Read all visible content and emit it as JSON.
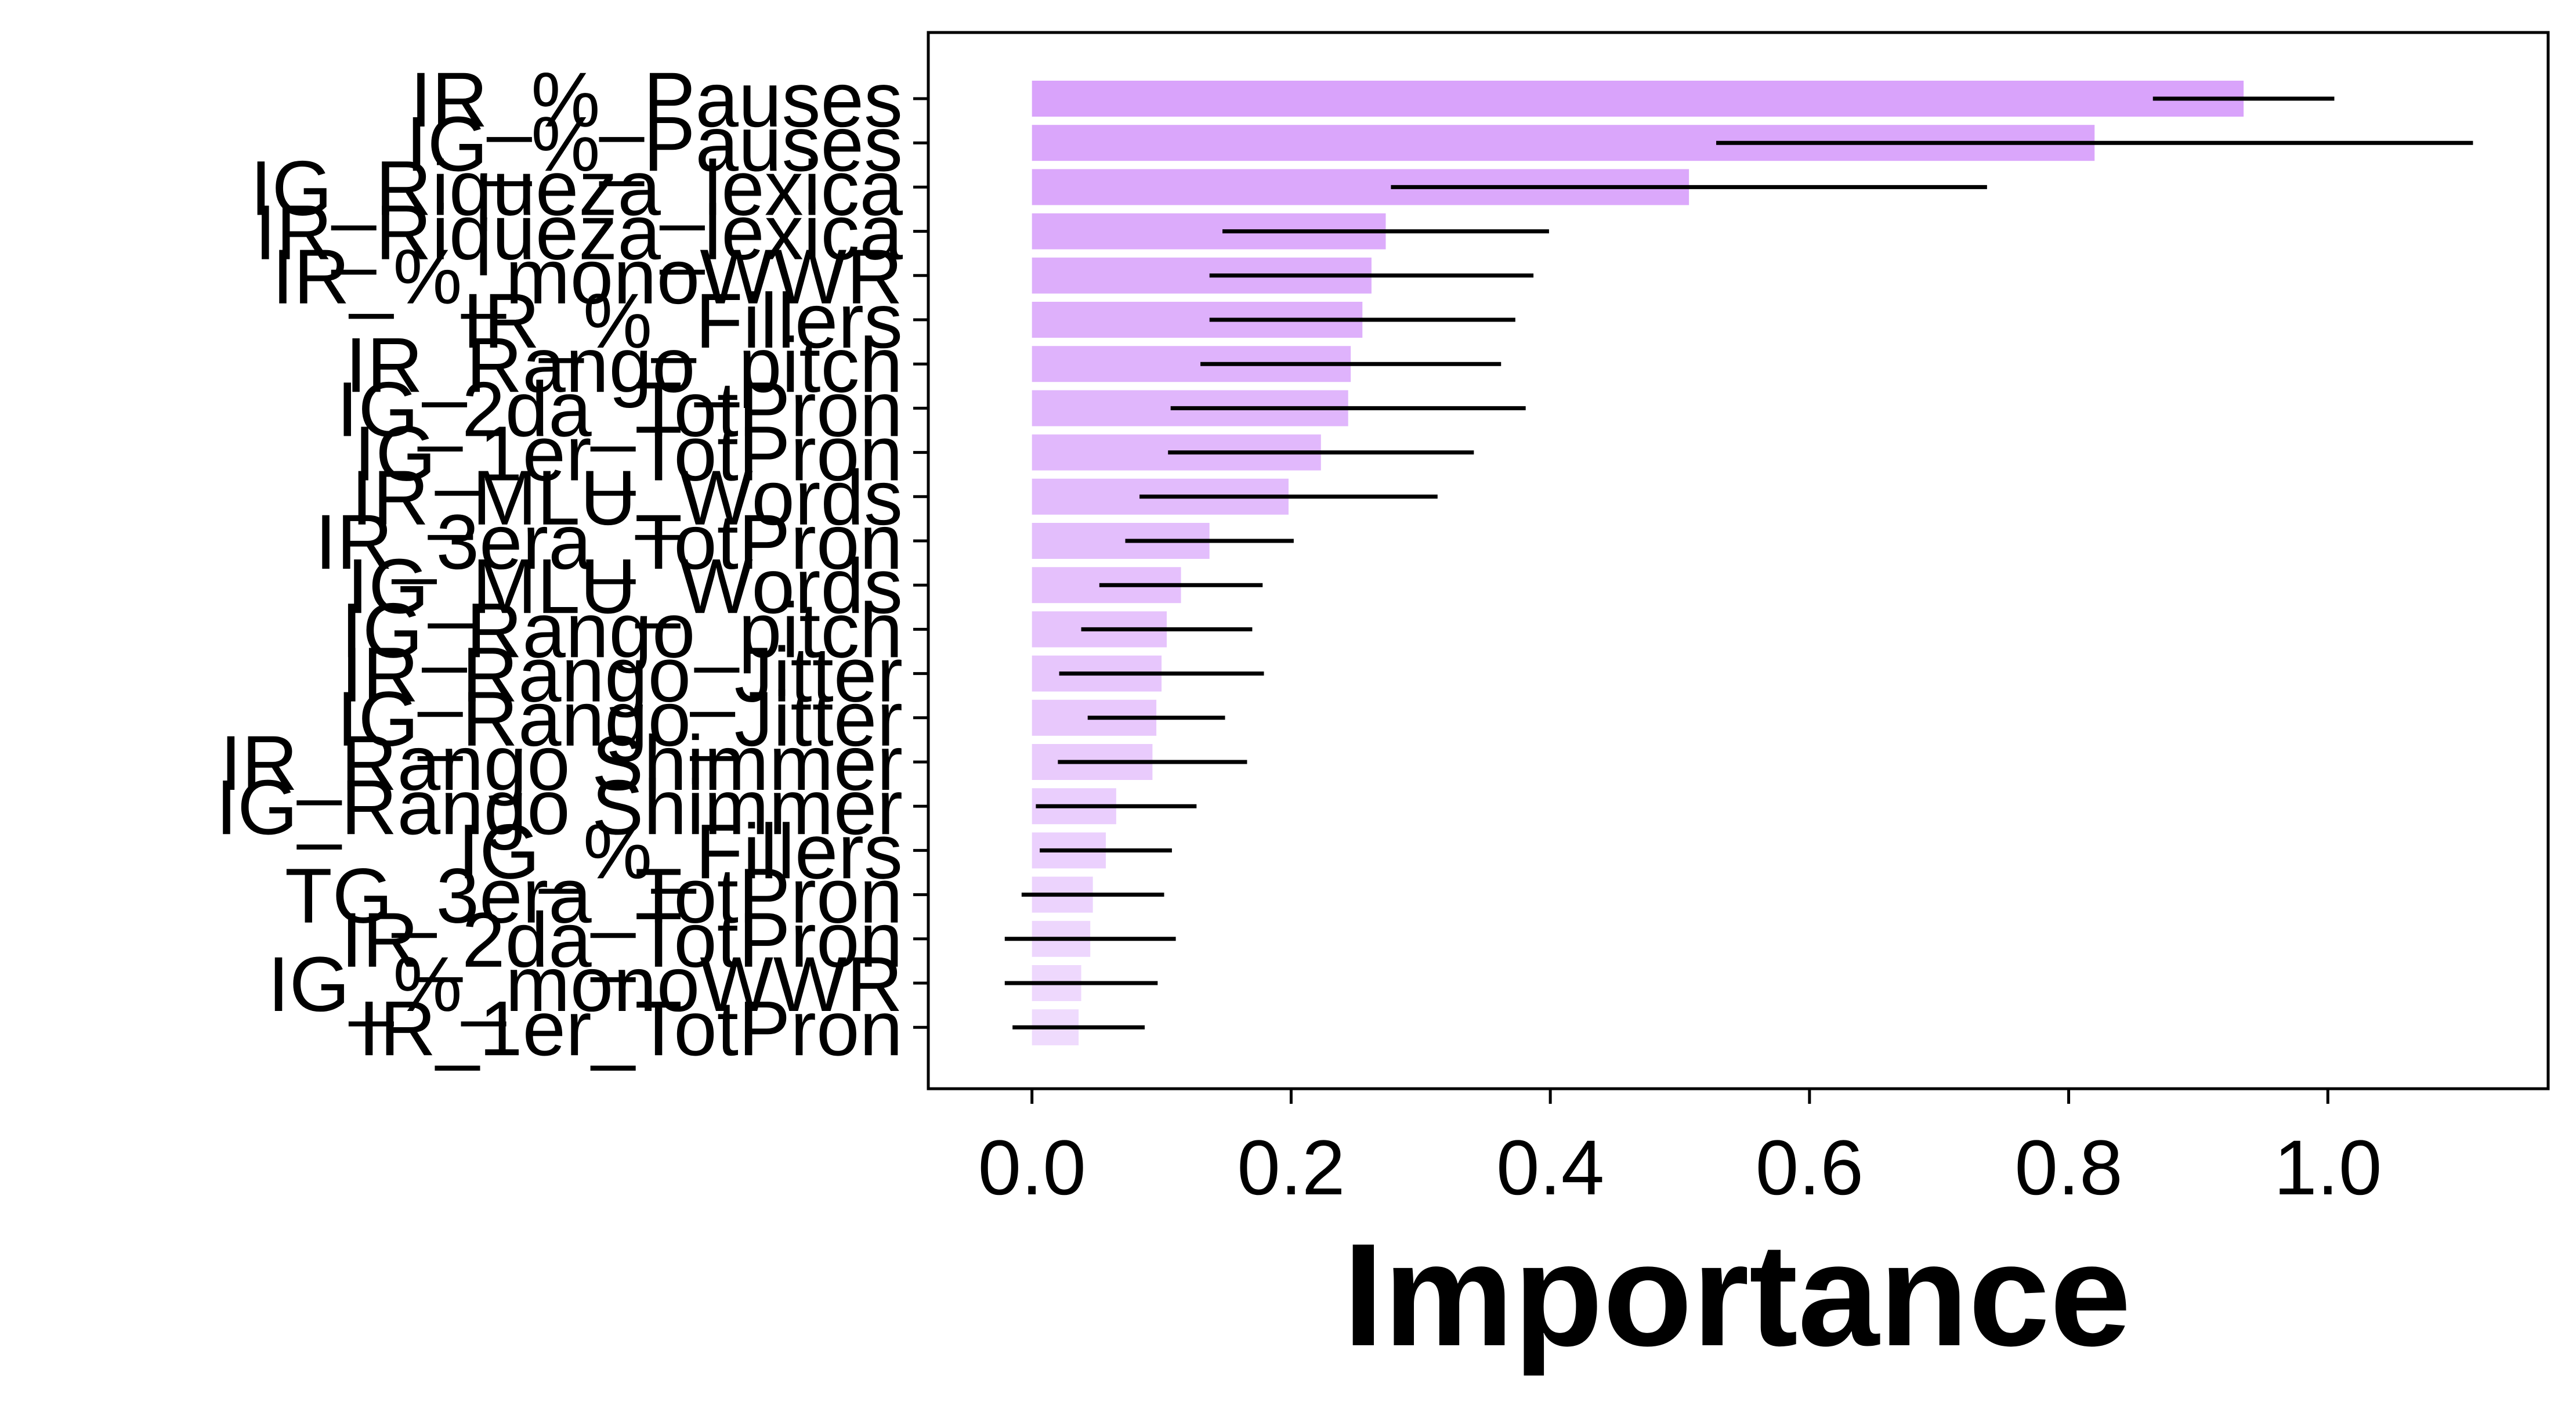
{
  "chart_data": {
    "type": "bar",
    "orientation": "horizontal",
    "xlabel": "Importance",
    "ylabel": "",
    "title": "",
    "xlim": [
      -0.08,
      1.17
    ],
    "xticks": [
      0.0,
      0.2,
      0.4,
      0.6,
      0.8,
      1.0
    ],
    "xtick_labels": [
      "0.0",
      "0.2",
      "0.4",
      "0.6",
      "0.8",
      "1.0"
    ],
    "grid": false,
    "legend": "none",
    "bar_color": "#d9a3fb",
    "bar_color_faded": "#efdbfd",
    "error_color": "#000000",
    "categories": [
      "IR_%_Pauses",
      "IG_%_Pauses",
      "IG_Riqueza_lexica",
      "IR_Riqueza_lexica",
      "IR_%_monoWWR",
      "IR_%_Fillers",
      "IR_Rango_pitch",
      "IG_2da_TotPron",
      "IG_1er_TotPron",
      "IR_MLU_Words",
      "IR_3era_TotPron",
      "IG_MLU_Words",
      "IG_Rango_pitch",
      "IR_Rango_Jitter",
      "IG_Rango_Jitter",
      "IR_Rango Shimmer",
      "IG_Rango Shimmer",
      "IG_%_Fillers",
      "TG_3era_TotPron",
      "IR_2da_TotPron",
      "IG_%_monoWWR",
      "IR_1er_TotPron"
    ],
    "values": [
      0.935,
      0.82,
      0.507,
      0.273,
      0.262,
      0.255,
      0.246,
      0.244,
      0.223,
      0.198,
      0.137,
      0.115,
      0.104,
      0.1,
      0.096,
      0.093,
      0.065,
      0.057,
      0.047,
      0.045,
      0.038,
      0.036
    ],
    "errors": [
      0.07,
      0.292,
      0.23,
      0.126,
      0.125,
      0.118,
      0.116,
      0.137,
      0.118,
      0.115,
      0.065,
      0.063,
      0.066,
      0.079,
      0.053,
      0.073,
      0.062,
      0.051,
      0.055,
      0.066,
      0.059,
      0.051
    ]
  }
}
